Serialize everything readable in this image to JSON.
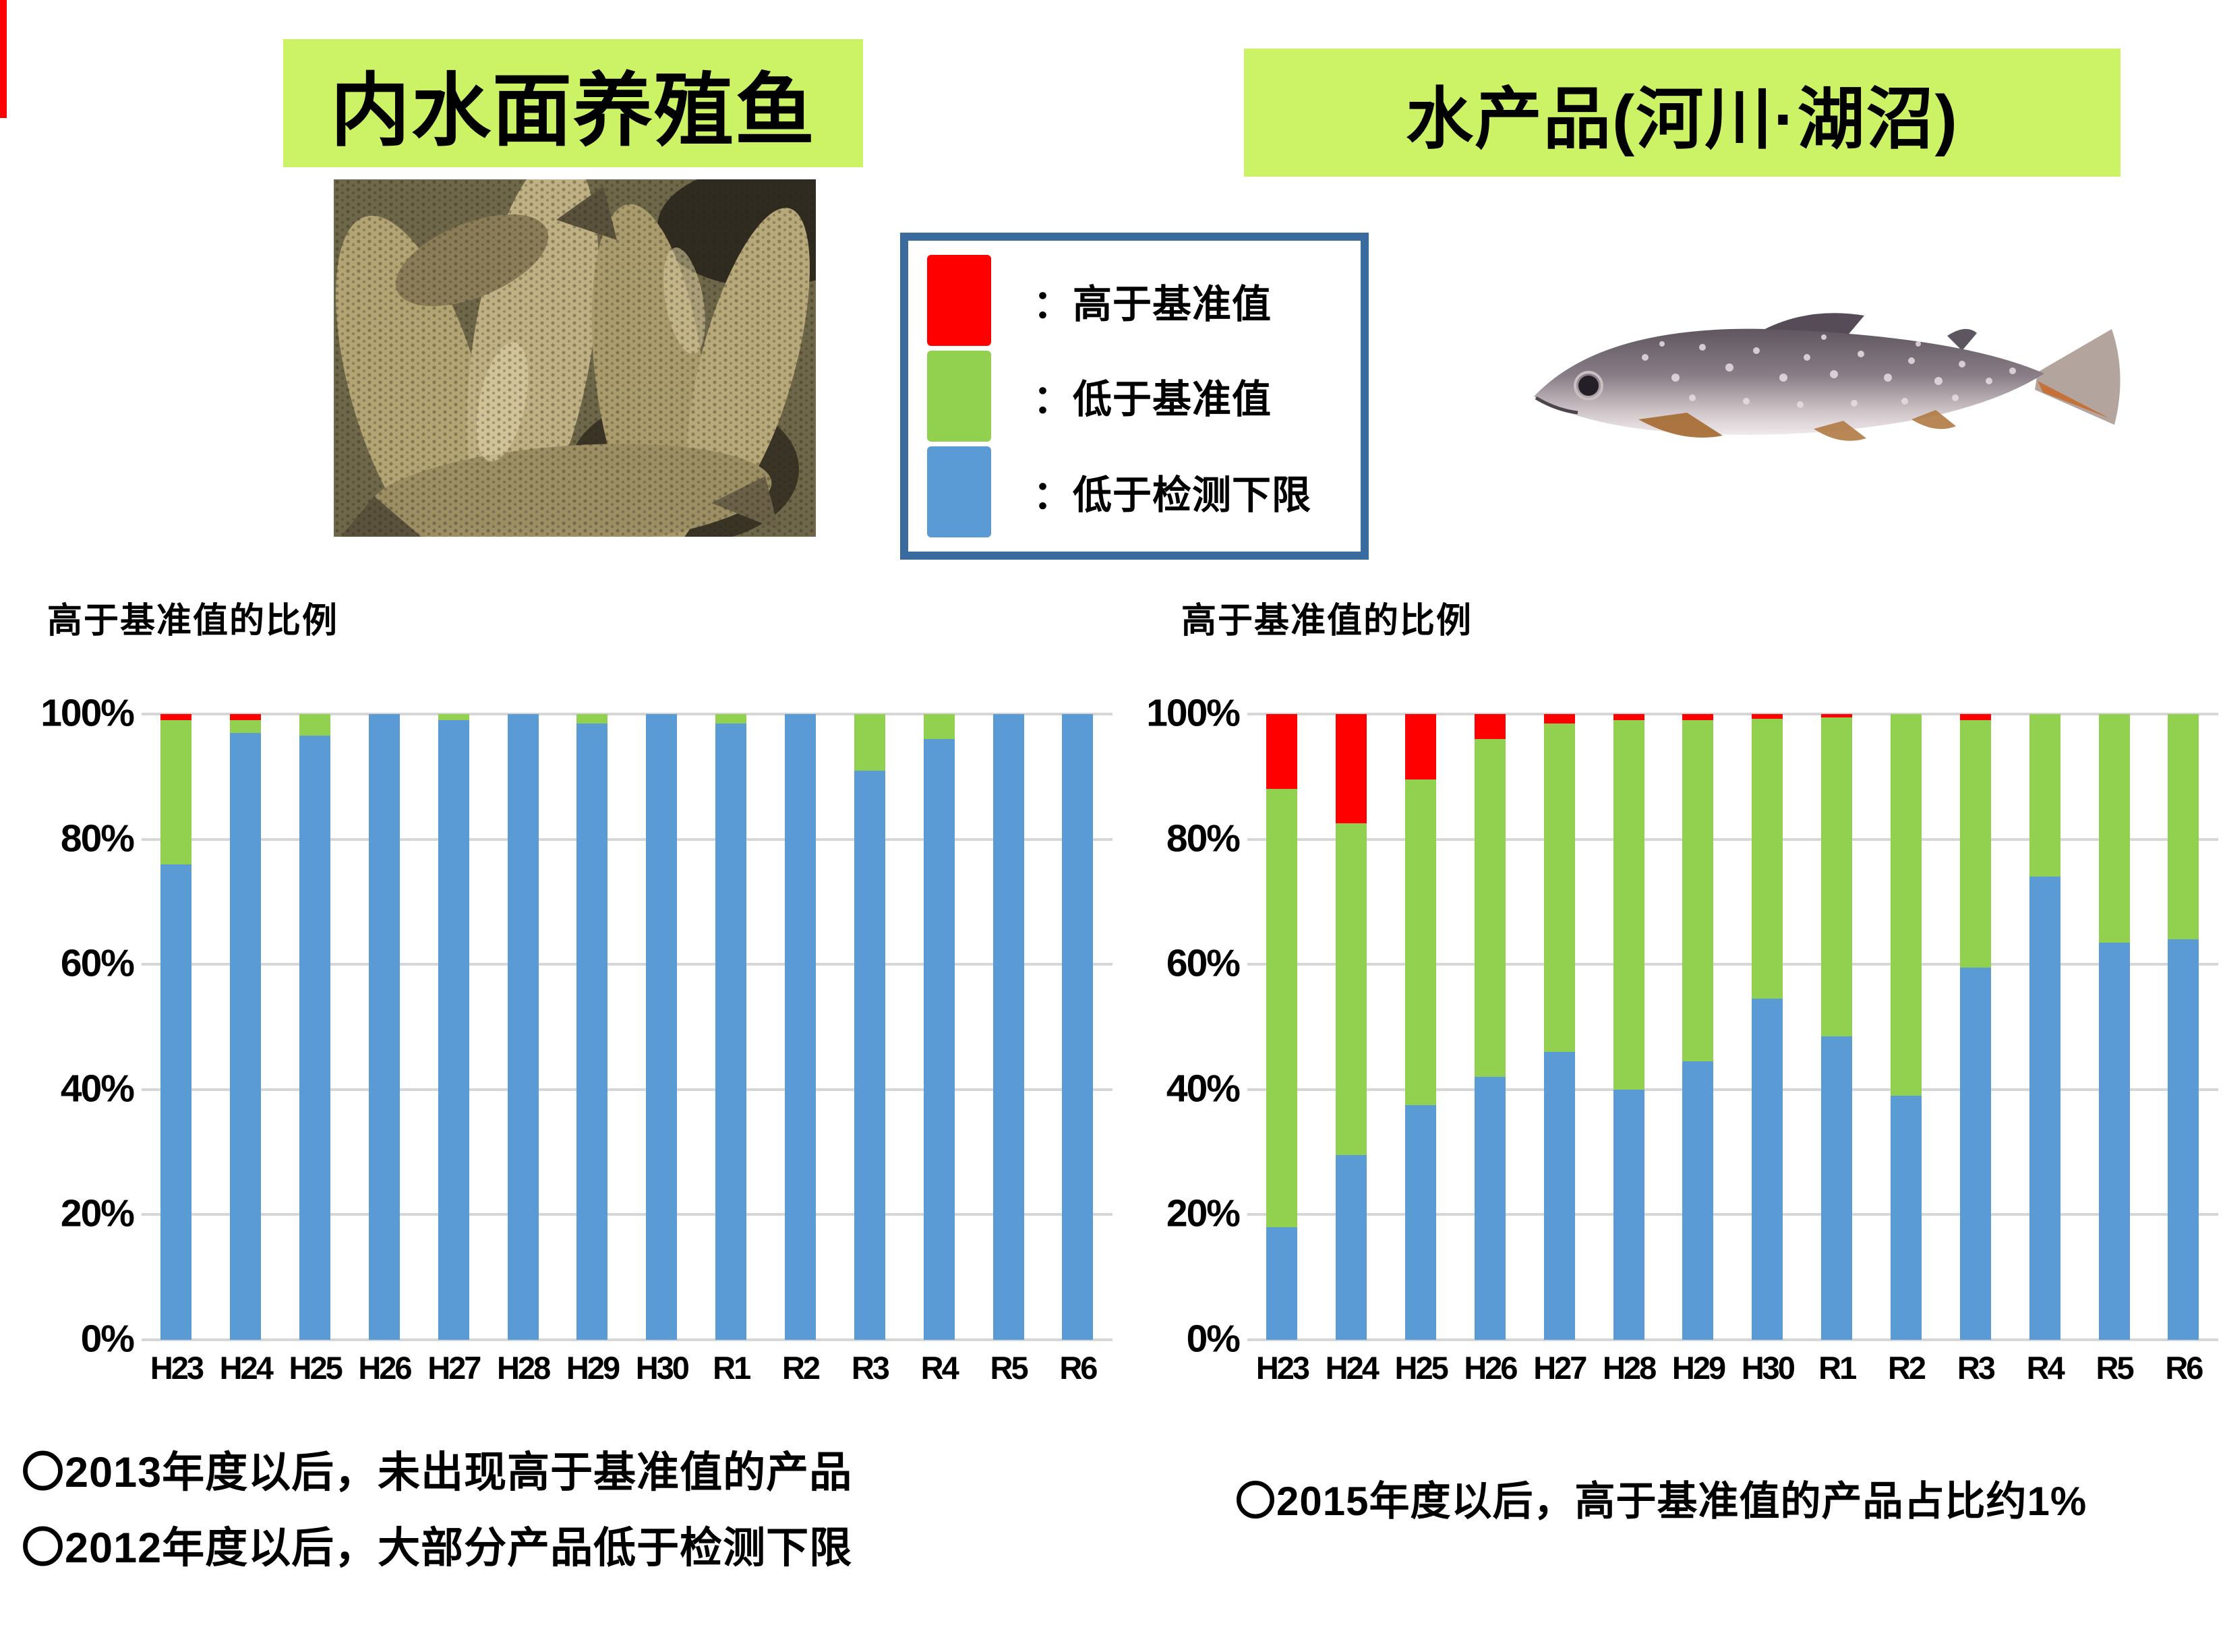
{
  "page": {
    "left_header": "内水面养殖鱼",
    "right_header": "水产品(河川·湖沼)",
    "left_chart_title": "高于基准值的比例",
    "right_chart_title": "高于基准值的比例",
    "note_left_line1": "〇2013年度以后，未出现高于基准值的产品",
    "note_left_line2": "〇2012年度以后，大部分产品低于检测下限",
    "note_right": "〇2015年度以后，高于基准值的产品占比约1%"
  },
  "colors": {
    "header_background": "#ccf266",
    "above_standard_red": "#ff0000",
    "below_standard_green": "#92d050",
    "below_detection_blue": "#5b9bd5",
    "legend_border": "#3a6b9e",
    "gridline": "#d6d6d6"
  },
  "legend": {
    "items": [
      {
        "name": "above-standard",
        "label": "：高于基准值",
        "color": "#ff0000"
      },
      {
        "name": "below-standard",
        "label": "：低于基准值",
        "color": "#92d050"
      },
      {
        "name": "below-detection-limit",
        "label": "：低于检测下限",
        "color": "#5b9bd5"
      }
    ]
  },
  "chart_data": [
    {
      "type": "bar",
      "stacked": true,
      "title": "高于基准值的比例",
      "subject": "内水面养殖鱼",
      "ylabel": "",
      "xlabel": "",
      "ylim": [
        0,
        100
      ],
      "yticks": [
        {
          "v": 100,
          "label": "100%"
        },
        {
          "v": 80,
          "label": "80%"
        },
        {
          "v": 60,
          "label": "60%"
        },
        {
          "v": 40,
          "label": "40%"
        },
        {
          "v": 20,
          "label": "20%"
        },
        {
          "v": 0,
          "label": "0%"
        }
      ],
      "grid": true,
      "legend_position": "external-top",
      "categories": [
        "H23",
        "H24",
        "H25",
        "H26",
        "H27",
        "H28",
        "H29",
        "H30",
        "R1",
        "R2",
        "R3",
        "R4",
        "R5",
        "R6"
      ],
      "series": [
        {
          "name": "低于检测下限",
          "color": "#5b9bd5",
          "values": [
            76,
            97,
            96.5,
            100,
            99,
            100,
            98.5,
            100,
            98.5,
            100,
            91,
            96,
            100,
            100
          ]
        },
        {
          "name": "低于基准值",
          "color": "#92d050",
          "values": [
            23,
            2,
            3.5,
            0,
            1,
            0,
            1.5,
            0,
            1.5,
            0,
            9,
            4,
            0,
            0
          ]
        },
        {
          "name": "高于基准值",
          "color": "#ff0000",
          "values": [
            1,
            1,
            0,
            0,
            0,
            0,
            0,
            0,
            0,
            0,
            0,
            0,
            0,
            0
          ]
        }
      ]
    },
    {
      "type": "bar",
      "stacked": true,
      "title": "高于基准值的比例",
      "subject": "水产品(河川·湖沼)",
      "ylabel": "",
      "xlabel": "",
      "ylim": [
        0,
        100
      ],
      "yticks": [
        {
          "v": 100,
          "label": "100%"
        },
        {
          "v": 80,
          "label": "80%"
        },
        {
          "v": 60,
          "label": "60%"
        },
        {
          "v": 40,
          "label": "40%"
        },
        {
          "v": 20,
          "label": "20%"
        },
        {
          "v": 0,
          "label": "0%"
        }
      ],
      "grid": true,
      "legend_position": "external-top",
      "categories": [
        "H23",
        "H24",
        "H25",
        "H26",
        "H27",
        "H28",
        "H29",
        "H30",
        "R1",
        "R2",
        "R3",
        "R4",
        "R5",
        "R6"
      ],
      "series": [
        {
          "name": "低于检测下限",
          "color": "#5b9bd5",
          "values": [
            18,
            29.5,
            37.5,
            42,
            46,
            40,
            44.5,
            54.5,
            48.5,
            39,
            59.5,
            74,
            63.5,
            64
          ]
        },
        {
          "name": "低于基准值",
          "color": "#92d050",
          "values": [
            70,
            53,
            52,
            54,
            52.5,
            59,
            54.5,
            44.7,
            51,
            61,
            39.5,
            26,
            36.5,
            36
          ]
        },
        {
          "name": "高于基准值",
          "color": "#ff0000",
          "values": [
            12,
            17.5,
            10.5,
            4,
            1.5,
            1,
            1,
            0.8,
            0.5,
            0,
            1,
            0,
            0,
            0
          ]
        }
      ]
    }
  ]
}
